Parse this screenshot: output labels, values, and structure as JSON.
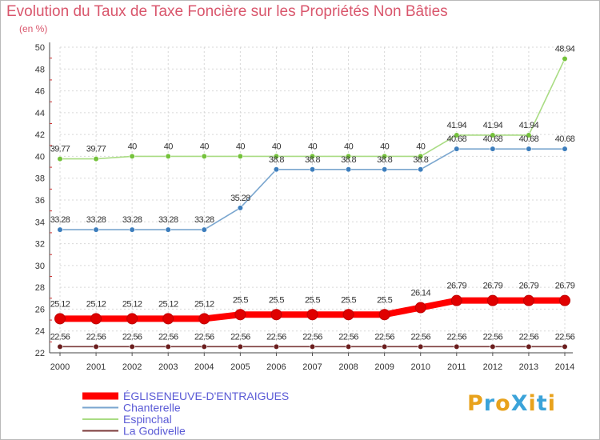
{
  "title": "Evolution du Taux de Taxe Foncière sur les Propriétés Non Bâties",
  "unit_label": "(en %)",
  "logo": {
    "text": "ProXiti",
    "colors": [
      "#e8a21c",
      "#3ba3d9",
      "#e8a21c",
      "#3ba3d9",
      "#e8a21c",
      "#3ba3d9",
      "#e8a21c"
    ]
  },
  "chart_data": {
    "type": "line",
    "x": [
      "2000",
      "2001",
      "2002",
      "2003",
      "2004",
      "2005",
      "2006",
      "2007",
      "2008",
      "2009",
      "2010",
      "2011",
      "2012",
      "2013",
      "2014"
    ],
    "ylim": [
      22,
      50
    ],
    "yticks": [
      22,
      24,
      26,
      28,
      30,
      32,
      34,
      36,
      38,
      40,
      42,
      44,
      46,
      48,
      50
    ],
    "grid": true,
    "legend_position": "bottom-left",
    "series": [
      {
        "name": "ÉGLISENEUVE-D'ENTRAIGUES",
        "color": "#ff0000",
        "point_color": "#e00000",
        "values": [
          25.12,
          25.12,
          25.12,
          25.12,
          25.12,
          25.5,
          25.5,
          25.5,
          25.5,
          25.5,
          26.14,
          26.79,
          26.79,
          26.79,
          26.79
        ],
        "labels": [
          "25.12",
          "25.12",
          "25.12",
          "25.12",
          "25.12",
          "25.5",
          "25.5",
          "25.5",
          "25.5",
          "25.5",
          "26.14",
          "26.79",
          "26.79",
          "26.79",
          "26.79"
        ]
      },
      {
        "name": "Chanterelle",
        "color": "#7aa6cf",
        "point_color": "#3d7ebd",
        "values": [
          33.28,
          33.28,
          33.28,
          33.28,
          33.28,
          35.28,
          38.8,
          38.8,
          38.8,
          38.8,
          38.8,
          40.68,
          40.68,
          40.68,
          40.68
        ],
        "labels": [
          "33.28",
          "33.28",
          "33.28",
          "33.28",
          "33.28",
          "35.28",
          "38.8",
          "38.8",
          "38.8",
          "38.8",
          "38.8",
          "40.68",
          "40.68",
          "40.68",
          "40.68"
        ]
      },
      {
        "name": "Espinchal",
        "color": "#a9dc83",
        "point_color": "#74c23b",
        "values": [
          39.77,
          39.77,
          40,
          40,
          40,
          40,
          40,
          40,
          40,
          40,
          40,
          41.94,
          41.94,
          41.94,
          48.94
        ],
        "labels": [
          "39.77",
          "39.77",
          "40",
          "40",
          "40",
          "40",
          "40",
          "40",
          "40",
          "40",
          "40",
          "41.94",
          "41.94",
          "41.94",
          "48.94"
        ]
      },
      {
        "name": "La Godivelle",
        "color": "#7b3a3a",
        "point_color": "#6b1e1e",
        "values": [
          22.56,
          22.56,
          22.56,
          22.56,
          22.56,
          22.56,
          22.56,
          22.56,
          22.56,
          22.56,
          22.56,
          22.56,
          22.56,
          22.56,
          22.56
        ],
        "labels": [
          "22.56",
          "22.56",
          "22.56",
          "22.56",
          "22.56",
          "22.56",
          "22.56",
          "22.56",
          "22.56",
          "22.56",
          "22.56",
          "22.56",
          "22.56",
          "22.56",
          "22.56"
        ]
      }
    ]
  }
}
